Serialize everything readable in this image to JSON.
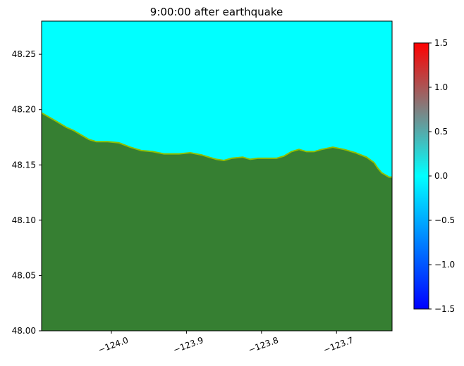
{
  "chart_data": {
    "type": "heatmap",
    "title": "9:00:00 after earthquake",
    "xlabel": "",
    "ylabel": "",
    "xlim": [
      -124.093,
      -123.626
    ],
    "ylim": [
      48.0,
      48.28
    ],
    "x_ticks": [
      {
        "value": -124.0,
        "label": "−124.0"
      },
      {
        "value": -123.9,
        "label": "−123.9"
      },
      {
        "value": -123.8,
        "label": "−123.8"
      },
      {
        "value": -123.7,
        "label": "−123.7"
      }
    ],
    "y_ticks": [
      {
        "value": 48.0,
        "label": "48.00"
      },
      {
        "value": 48.05,
        "label": "48.05"
      },
      {
        "value": 48.1,
        "label": "48.10"
      },
      {
        "value": 48.15,
        "label": "48.15"
      },
      {
        "value": 48.2,
        "label": "48.20"
      },
      {
        "value": 48.25,
        "label": "48.25"
      }
    ],
    "colorbar": {
      "range": [
        -1.5,
        1.5
      ],
      "ticks": [
        {
          "value": 1.5,
          "label": "1.5"
        },
        {
          "value": 1.0,
          "label": "1.0"
        },
        {
          "value": 0.5,
          "label": "0.5"
        },
        {
          "value": 0.0,
          "label": "0.0"
        },
        {
          "value": -0.5,
          "label": "−0.5"
        },
        {
          "value": -1.0,
          "label": "−1.0"
        },
        {
          "value": -1.5,
          "label": "−1.5"
        }
      ],
      "colors": [
        "#0000ff",
        "#0080ff",
        "#00ffff",
        "#808080",
        "#ff0000"
      ]
    },
    "water_color": "#00ffff",
    "land_color": "#367f32",
    "coastline": [
      [
        -124.093,
        48.197
      ],
      [
        -124.075,
        48.19
      ],
      [
        -124.06,
        48.184
      ],
      [
        -124.05,
        48.181
      ],
      [
        -124.04,
        48.177
      ],
      [
        -124.03,
        48.173
      ],
      [
        -124.02,
        48.171
      ],
      [
        -124.005,
        48.171
      ],
      [
        -123.99,
        48.17
      ],
      [
        -123.975,
        48.166
      ],
      [
        -123.96,
        48.163
      ],
      [
        -123.945,
        48.162
      ],
      [
        -123.93,
        48.16
      ],
      [
        -123.91,
        48.16
      ],
      [
        -123.895,
        48.161
      ],
      [
        -123.88,
        48.159
      ],
      [
        -123.87,
        48.157
      ],
      [
        -123.86,
        48.155
      ],
      [
        -123.85,
        48.154
      ],
      [
        -123.84,
        48.156
      ],
      [
        -123.825,
        48.157
      ],
      [
        -123.815,
        48.155
      ],
      [
        -123.805,
        48.156
      ],
      [
        -123.79,
        48.156
      ],
      [
        -123.78,
        48.156
      ],
      [
        -123.77,
        48.158
      ],
      [
        -123.76,
        48.162
      ],
      [
        -123.75,
        48.164
      ],
      [
        -123.74,
        48.162
      ],
      [
        -123.73,
        48.162
      ],
      [
        -123.72,
        48.164
      ],
      [
        -123.705,
        48.166
      ],
      [
        -123.69,
        48.164
      ],
      [
        -123.675,
        48.161
      ],
      [
        -123.66,
        48.157
      ],
      [
        -123.65,
        48.152
      ],
      [
        -123.645,
        48.147
      ],
      [
        -123.64,
        48.143
      ],
      [
        -123.63,
        48.139
      ],
      [
        -123.626,
        48.139
      ]
    ]
  }
}
